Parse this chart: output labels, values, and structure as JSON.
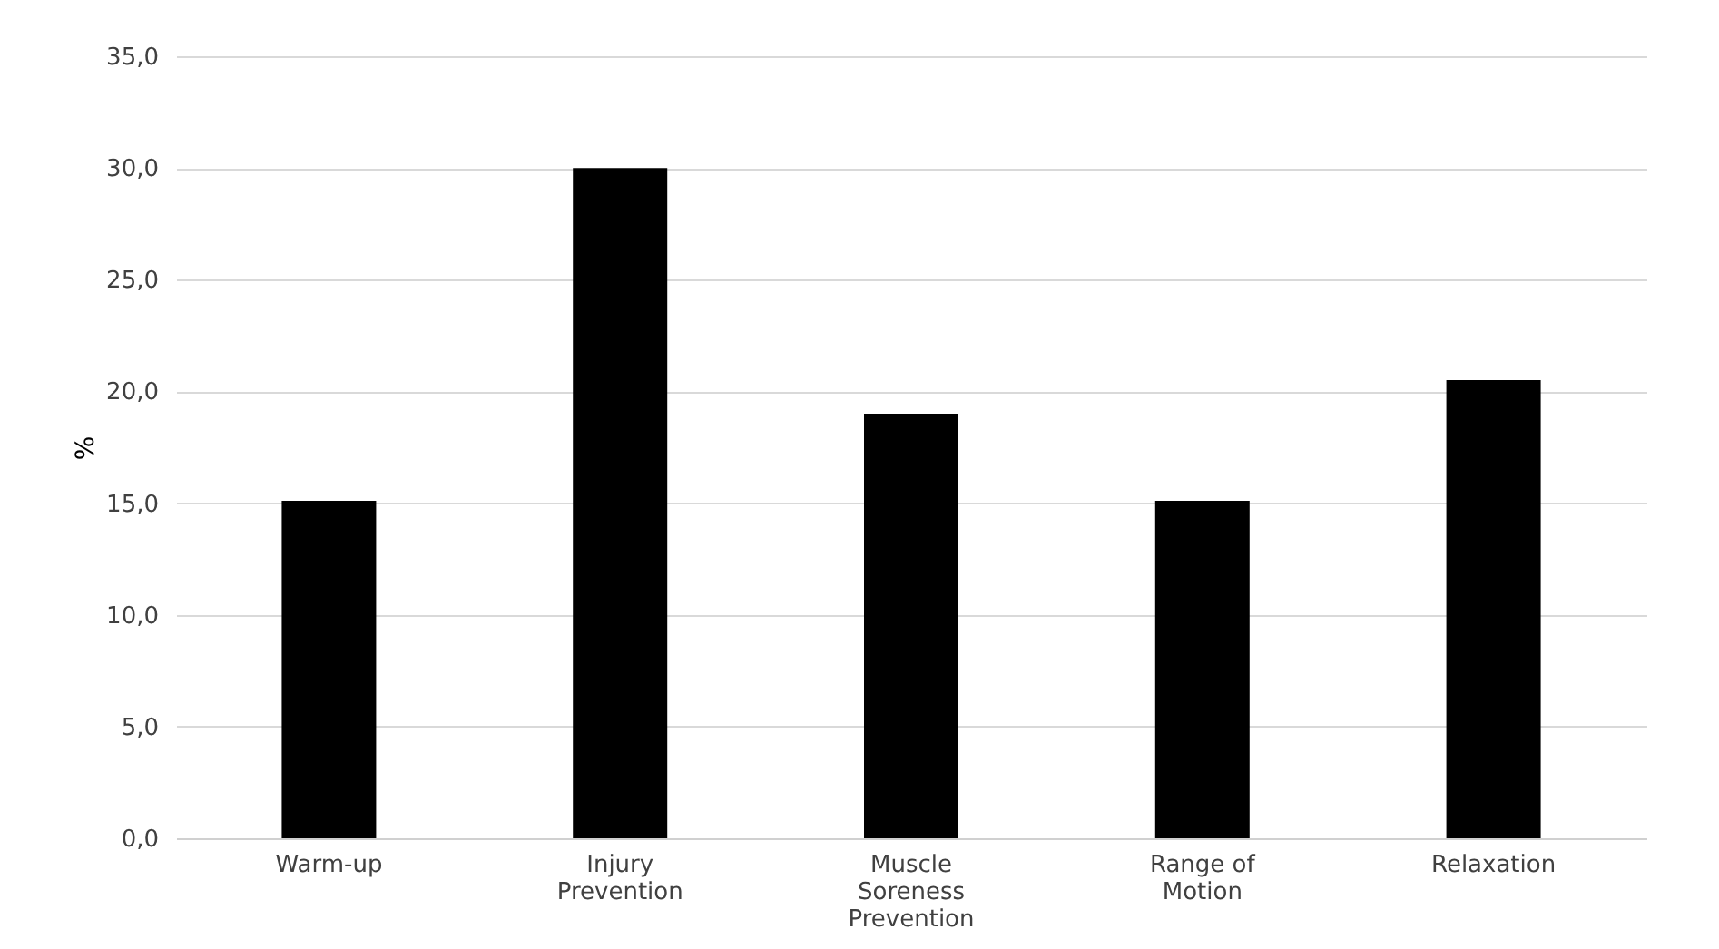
{
  "chart_data": {
    "type": "bar",
    "ylabel": "%",
    "categories": [
      "Warm-up",
      "Injury Prevention",
      "Muscle Soreness Prevention",
      "Range of Motion",
      "Relaxation"
    ],
    "values": [
      15.1,
      30.0,
      19.0,
      15.1,
      20.5
    ],
    "color": "#000000",
    "ylim": [
      0,
      35
    ],
    "yticks": [
      {
        "value": 0,
        "label": "0,0"
      },
      {
        "value": 5,
        "label": "5,0"
      },
      {
        "value": 10,
        "label": "10,0"
      },
      {
        "value": 15,
        "label": "15,0"
      },
      {
        "value": 20,
        "label": "20,0"
      },
      {
        "value": 25,
        "label": "25,0"
      },
      {
        "value": 30,
        "label": "30,0"
      },
      {
        "value": 35,
        "label": "35,0"
      }
    ],
    "grid": "y"
  }
}
